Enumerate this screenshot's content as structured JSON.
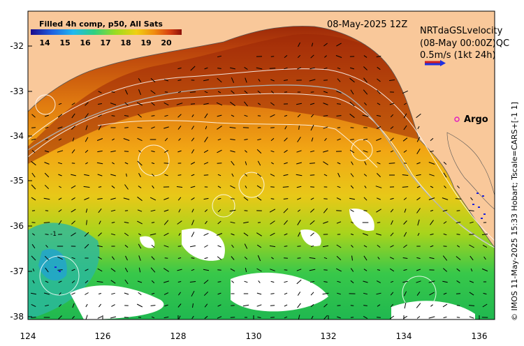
{
  "header": {
    "colorbar_title": "Filled 4h comp, p50, All Sats",
    "date_label": "08-May-2025 12Z",
    "velocity_title": "NRTdaGSLvelocity",
    "velocity_subtitle": "(08-May 00:00Z)QC",
    "velocity_scale": "0.5m/s (1kt 24h)"
  },
  "colorbar": {
    "ticks": [
      "14",
      "15",
      "16",
      "17",
      "18",
      "19",
      "20"
    ],
    "stops": [
      "#1a0a8c",
      "#2060e0",
      "#20b8f0",
      "#30d080",
      "#9adc20",
      "#f0d010",
      "#f08a10",
      "#d84010",
      "#8c1008"
    ]
  },
  "axes": {
    "x_ticks": [
      "124",
      "126",
      "128",
      "130",
      "132",
      "134",
      "136"
    ],
    "y_ticks": [
      "-32",
      "-33",
      "-34",
      "-35",
      "-36",
      "-37",
      "-38"
    ]
  },
  "map": {
    "argo_label": "Argo",
    "spot_label": "-1",
    "land_color": "#f9c89a",
    "argo_color": "#e020c0",
    "arrow_color": "#000000",
    "contour_color": "#ffffff",
    "scale_arrow_colors": [
      "#d02020",
      "#2030e0"
    ]
  },
  "footer": {
    "credit": "© IMOS 11-May-2025 15:33 Hobart; Tscale=CARS+[-1 1]"
  }
}
